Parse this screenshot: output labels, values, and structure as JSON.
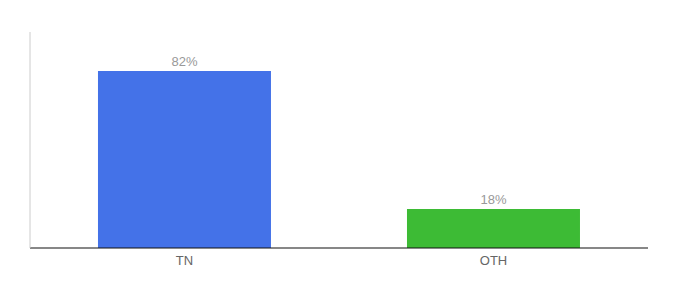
{
  "chart_data": {
    "type": "bar",
    "categories": [
      "TN",
      "OTH"
    ],
    "values": [
      82,
      18
    ],
    "value_labels": [
      "82%",
      "18%"
    ],
    "colors": [
      "#4472e8",
      "#3dbb35"
    ],
    "data_labels": true,
    "ylim": [
      0,
      100
    ],
    "yticks": [],
    "grid": false,
    "tick_labels": "x"
  }
}
